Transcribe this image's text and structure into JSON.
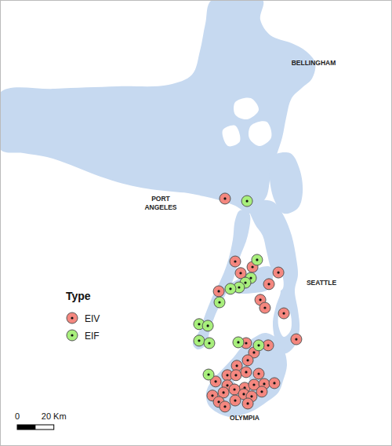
{
  "chart_data": {
    "type": "scatter",
    "xlim": [
      -124.9,
      -121.75
    ],
    "ylim": [
      46.865,
      49.05
    ],
    "tick_labels": false,
    "legend": "left",
    "legend_title": "Type",
    "annotations": [
      "BELLINGHAM",
      "PORT ANGELES",
      "SEATTLE",
      "OLYMPIA"
    ],
    "scale_bar": {
      "km": 20,
      "labels": [
        "0",
        "20 Km"
      ]
    },
    "series": [
      {
        "name": "EIV",
        "color": "#f4877f",
        "marker": "circle",
        "x": [
          -123.092,
          -123.01,
          -122.871,
          -122.966,
          -123.142,
          -122.663,
          -122.739,
          -122.808,
          -122.771,
          -122.619,
          -122.519,
          -122.922,
          -122.745,
          -122.859,
          -122.909,
          -122.997,
          -123.073,
          -123.004,
          -122.922,
          -122.821,
          -123.167,
          -123.073,
          -122.934,
          -122.859,
          -122.777,
          -122.695,
          -123.193,
          -123.104,
          -123.016,
          -122.941,
          -122.878,
          -123.142,
          -123.01,
          -122.909,
          -123.092,
          -122.796
        ],
        "y": [
          48.077,
          47.769,
          47.742,
          47.712,
          47.623,
          47.715,
          47.658,
          47.581,
          47.542,
          47.515,
          47.388,
          47.369,
          47.358,
          47.323,
          47.285,
          47.258,
          47.212,
          47.212,
          47.227,
          47.219,
          47.181,
          47.162,
          47.15,
          47.165,
          47.169,
          47.173,
          47.112,
          47.127,
          47.142,
          47.119,
          47.108,
          47.081,
          47.088,
          47.073,
          47.058,
          47.131
        ]
      },
      {
        "name": "EIF",
        "color": "#a8ef7c",
        "marker": "circle",
        "x": [
          -122.915,
          -122.834,
          -122.884,
          -122.928,
          -122.979,
          -123.048,
          -123.136,
          -123.3,
          -123.23,
          -123.3,
          -123.218,
          -122.985,
          -122.821,
          -123.224
        ],
        "y": [
          48.065,
          47.777,
          47.688,
          47.665,
          47.642,
          47.635,
          47.569,
          47.462,
          47.454,
          47.381,
          47.369,
          47.373,
          47.358,
          47.215
        ]
      }
    ]
  }
}
